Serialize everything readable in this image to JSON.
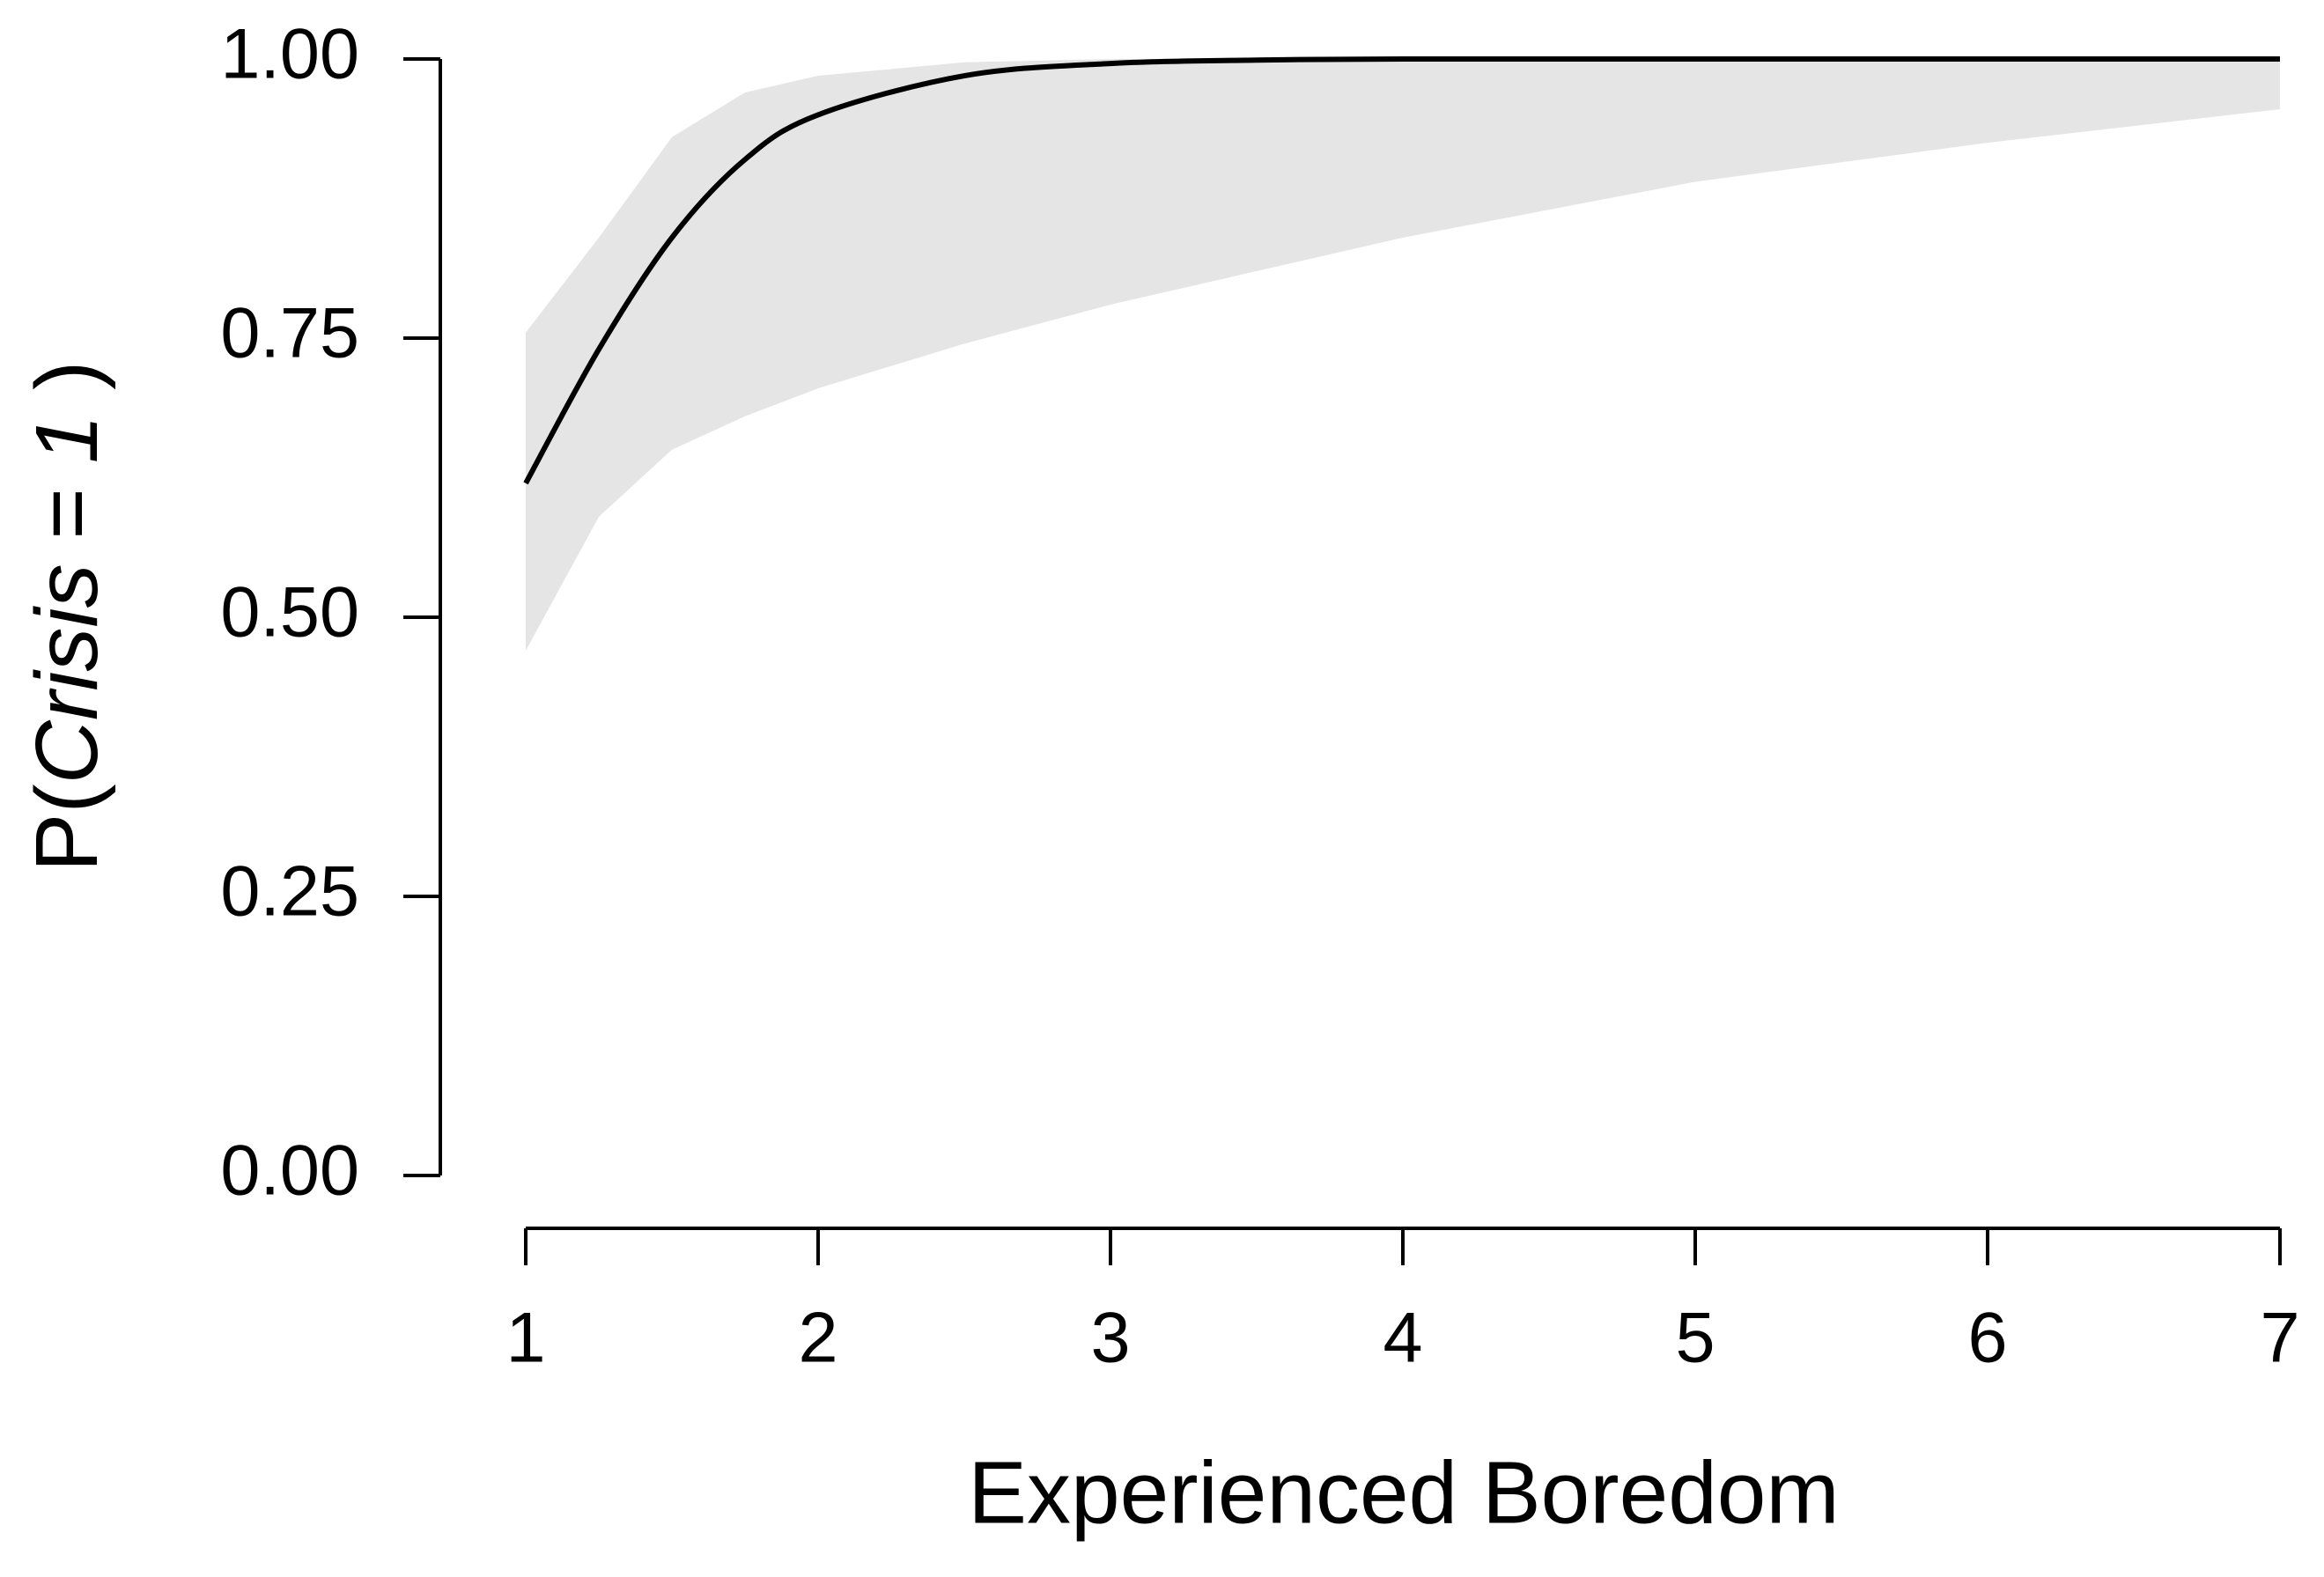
{
  "chart_data": {
    "type": "line",
    "xlabel": "Experienced Boredom",
    "ylabel_parts": [
      "P(",
      "Crisis",
      " = ",
      "1",
      " )"
    ],
    "x": [
      1,
      1.25,
      1.5,
      1.75,
      2,
      2.5,
      3,
      3.5,
      4,
      5,
      6,
      7
    ],
    "line": {
      "color": "#000000",
      "values": [
        0.62,
        0.74,
        0.84,
        0.91,
        0.95,
        0.985,
        0.996,
        0.999,
        1,
        1,
        1,
        1
      ]
    },
    "band": {
      "color": "#e5e5e5",
      "lower": [
        0.47,
        0.59,
        0.65,
        0.68,
        0.705,
        0.745,
        0.78,
        0.81,
        0.84,
        0.89,
        0.925,
        0.955
      ],
      "upper": [
        0.755,
        0.84,
        0.93,
        0.97,
        0.985,
        0.997,
        1,
        1,
        1,
        1,
        1,
        1
      ]
    },
    "xlim": [
      1,
      7
    ],
    "xticks": [
      1,
      2,
      3,
      4,
      5,
      6,
      7
    ],
    "ylim": [
      0,
      1
    ],
    "yticks": [
      {
        "value": 0,
        "label": "0.00"
      },
      {
        "value": 0.25,
        "label": "0.25"
      },
      {
        "value": 0.5,
        "label": "0.50"
      },
      {
        "value": 0.75,
        "label": "0.75"
      },
      {
        "value": 1,
        "label": "1.00"
      }
    ]
  }
}
